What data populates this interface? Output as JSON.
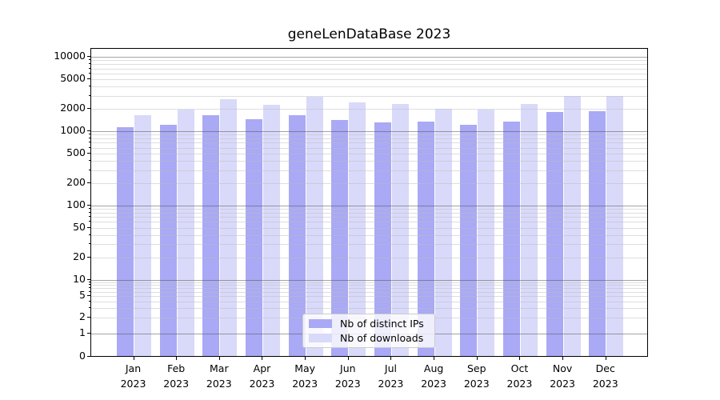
{
  "title": "geneLenDataBase 2023",
  "chart_data": {
    "type": "bar",
    "title": "geneLenDataBase 2023",
    "yscale": "symlog",
    "grid": true,
    "legend_position": "lower center",
    "ylim": [
      0,
      12800
    ],
    "y_ticks": [
      0,
      1,
      2,
      5,
      10,
      20,
      50,
      100,
      200,
      500,
      1000,
      2000,
      5000,
      10000
    ],
    "categories": [
      "Jan 2023",
      "Feb 2023",
      "Mar 2023",
      "Apr 2023",
      "May 2023",
      "Jun 2023",
      "Jul 2023",
      "Aug 2023",
      "Sep 2023",
      "Oct 2023",
      "Nov 2023",
      "Dec 2023"
    ],
    "series": [
      {
        "name": "Nb of distinct IPs",
        "color": "#a9a9f5",
        "values": [
          1130,
          1230,
          1660,
          1450,
          1640,
          1400,
          1300,
          1360,
          1230,
          1360,
          1820,
          1840
        ]
      },
      {
        "name": "Nb of downloads",
        "color": "#d9d9fa",
        "values": [
          1650,
          1970,
          2670,
          2290,
          2890,
          2450,
          2310,
          1980,
          1960,
          2350,
          2970,
          3000
        ]
      }
    ]
  },
  "colors": {
    "bar_distinct_ips": "#a9a9f5",
    "bar_downloads": "#d9d9fa",
    "spine": "#000000",
    "grid_major": "#a4a4a4",
    "grid_minor": "#dedede"
  }
}
